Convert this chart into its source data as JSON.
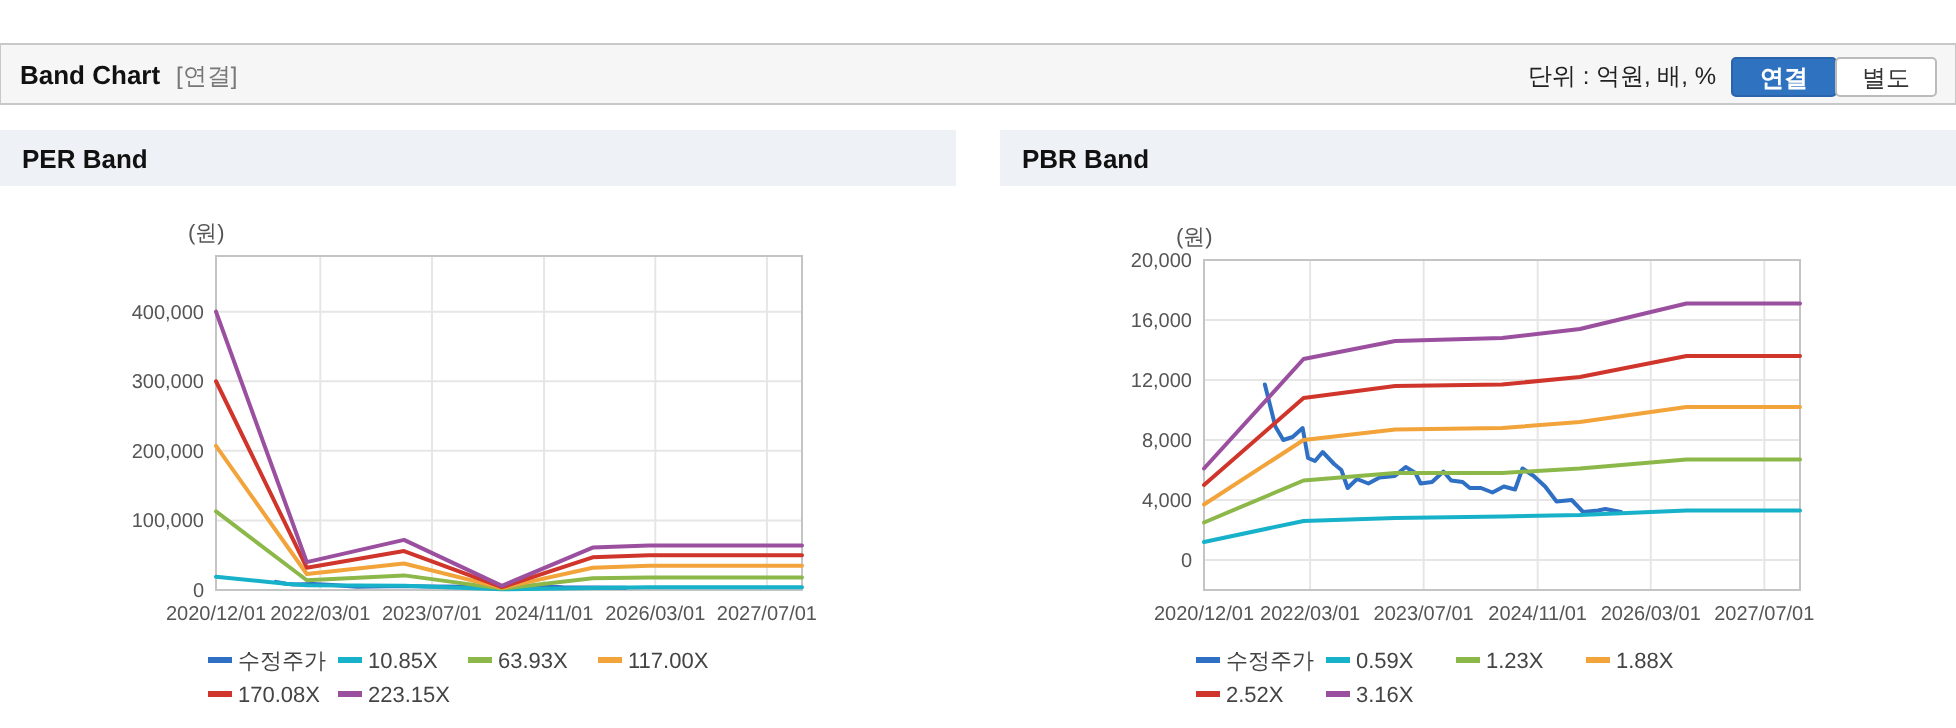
{
  "chart_data": [
    {
      "type": "other",
      "title": "Band Chart",
      "subtitle": "[연결]",
      "annotations": [
        "단위 : 억원, 배, %",
        "연결",
        "별도"
      ]
    },
    {
      "type": "line",
      "title": "PER Band",
      "ylabel": "(원)",
      "legend": "bottom",
      "grid": true,
      "marker": "none",
      "line_style": "solid",
      "xlim": [
        "2020-12-01",
        "2027-12-01"
      ],
      "ylim": [
        0,
        480000
      ],
      "xticks": [
        {
          "value": "2020-12-01",
          "label": "2020/12/01"
        },
        {
          "value": "2022-03-01",
          "label": "2022/03/01"
        },
        {
          "value": "2023-07-01",
          "label": "2023/07/01"
        },
        {
          "value": "2024-11-01",
          "label": "2024/11/01"
        },
        {
          "value": "2026-03-01",
          "label": "2026/03/01"
        },
        {
          "value": "2027-07-01",
          "label": "2027/07/01"
        }
      ],
      "yticks": [
        {
          "value": 0,
          "label": "0"
        },
        {
          "value": 100000,
          "label": "100,000"
        },
        {
          "value": 200000,
          "label": "200,000"
        },
        {
          "value": 300000,
          "label": "300,000"
        },
        {
          "value": 400000,
          "label": "400,000"
        }
      ],
      "series": [
        {
          "name": "수정주가",
          "color": "#2f6fc4",
          "x": [
            "2021-08-19",
            "2021-10-03",
            "2021-11-06",
            "2022-01-28",
            "2022-04-24",
            "2022-08-09",
            "2023-02-27",
            "2023-06-18",
            "2024-01-15",
            "2024-08-28",
            "2025-01-21",
            "2025-10-24"
          ],
          "values": [
            11700,
            8900,
            8000,
            8800,
            7200,
            4800,
            5600,
            5100,
            4800,
            6100,
            3900,
            3200
          ]
        },
        {
          "name": "10.85X",
          "color": "#17b1c9",
          "x": [
            "2020-12-01",
            "2021-10-01",
            "2022-01-01",
            "2023-03-01",
            "2024-05-01",
            "2025-06-01",
            "2026-02-01",
            "2027-12-01"
          ],
          "values": [
            19000,
            9000,
            7000,
            6000,
            1000,
            3000,
            4000,
            4000
          ]
        },
        {
          "name": "63.93X",
          "color": "#8cb84a",
          "x": [
            "2020-12-01",
            "2022-01-01",
            "2023-03-01",
            "2024-05-01",
            "2025-06-01",
            "2026-02-01",
            "2027-12-01"
          ],
          "values": [
            113000,
            14000,
            21000,
            2000,
            17000,
            18000,
            18000
          ]
        },
        {
          "name": "117.00X",
          "color": "#f2a33a",
          "x": [
            "2020-12-01",
            "2022-01-01",
            "2023-03-01",
            "2024-05-01",
            "2025-06-01",
            "2026-02-01",
            "2027-12-01"
          ],
          "values": [
            207000,
            23000,
            38000,
            3000,
            32000,
            35000,
            35000
          ]
        },
        {
          "name": "170.08X",
          "color": "#d0352b",
          "x": [
            "2020-12-01",
            "2022-01-01",
            "2023-03-01",
            "2024-05-01",
            "2025-06-01",
            "2026-02-01",
            "2027-12-01"
          ],
          "values": [
            300000,
            32000,
            56000,
            4000,
            47000,
            50000,
            50000
          ]
        },
        {
          "name": "223.15X",
          "color": "#9b4f9f",
          "x": [
            "2020-12-01",
            "2022-01-01",
            "2023-03-01",
            "2024-05-01",
            "2025-06-01",
            "2026-02-01",
            "2027-12-01"
          ],
          "values": [
            400000,
            40000,
            72000,
            6000,
            61000,
            64000,
            64000
          ]
        }
      ]
    },
    {
      "type": "line",
      "title": "PBR Band",
      "ylabel": "(원)",
      "legend": "bottom",
      "grid": true,
      "marker": "none",
      "line_style": "solid",
      "xlim": [
        "2020-12-01",
        "2027-12-01"
      ],
      "ylim": [
        -2000,
        20000
      ],
      "xticks": [
        {
          "value": "2020-12-01",
          "label": "2020/12/01"
        },
        {
          "value": "2022-03-01",
          "label": "2022/03/01"
        },
        {
          "value": "2023-07-01",
          "label": "2023/07/01"
        },
        {
          "value": "2024-11-01",
          "label": "2024/11/01"
        },
        {
          "value": "2026-03-01",
          "label": "2026/03/01"
        },
        {
          "value": "2027-07-01",
          "label": "2027/07/01"
        }
      ],
      "yticks": [
        {
          "value": 0,
          "label": "0"
        },
        {
          "value": 4000,
          "label": "4,000"
        },
        {
          "value": 8000,
          "label": "8,000"
        },
        {
          "value": 12000,
          "label": "12,000"
        },
        {
          "value": 16000,
          "label": "16,000"
        },
        {
          "value": 20000,
          "label": "20,000"
        }
      ],
      "series": [
        {
          "name": "수정주가",
          "color": "#2f6fc4",
          "x": [
            "2021-08-19",
            "2021-10-03",
            "2021-11-06",
            "2021-12-16",
            "2022-01-28",
            "2022-02-20",
            "2022-03-22",
            "2022-04-24",
            "2022-06-12",
            "2022-07-13",
            "2022-08-09",
            "2022-09-18",
            "2022-11-06",
            "2022-12-24",
            "2023-02-27",
            "2023-04-15",
            "2023-05-27",
            "2023-06-18",
            "2023-08-06",
            "2023-09-24",
            "2023-10-27",
            "2023-12-15",
            "2024-01-15",
            "2024-03-03",
            "2024-04-21",
            "2024-06-09",
            "2024-07-27",
            "2024-08-28",
            "2024-10-15",
            "2024-12-03",
            "2025-01-21",
            "2025-03-27",
            "2025-05-15",
            "2025-07-18",
            "2025-08-18",
            "2025-10-24"
          ],
          "values": [
            11700,
            8900,
            8000,
            8200,
            8800,
            6800,
            6600,
            7200,
            6400,
            6000,
            4800,
            5400,
            5100,
            5500,
            5600,
            6200,
            5800,
            5100,
            5200,
            5900,
            5300,
            5200,
            4800,
            4800,
            4500,
            4900,
            4700,
            6100,
            5600,
            4900,
            3900,
            4000,
            3200,
            3300,
            3400,
            3200
          ]
        },
        {
          "name": "0.59X",
          "color": "#17b1c9",
          "x": [
            "2020-12-01",
            "2022-02-01",
            "2023-03-01",
            "2024-06-01",
            "2025-05-01",
            "2026-08-01",
            "2027-12-01"
          ],
          "values": [
            1200,
            2600,
            2800,
            2900,
            3000,
            3300,
            3300
          ]
        },
        {
          "name": "1.23X",
          "color": "#8cb84a",
          "x": [
            "2020-12-01",
            "2022-02-01",
            "2023-03-01",
            "2024-06-01",
            "2025-05-01",
            "2026-08-01",
            "2027-12-01"
          ],
          "values": [
            2500,
            5300,
            5800,
            5800,
            6100,
            6700,
            6700
          ]
        },
        {
          "name": "1.88X",
          "color": "#f2a33a",
          "x": [
            "2020-12-01",
            "2022-02-01",
            "2023-03-01",
            "2024-06-01",
            "2025-05-01",
            "2026-08-01",
            "2027-12-01"
          ],
          "values": [
            3700,
            8000,
            8700,
            8800,
            9200,
            10200,
            10200
          ]
        },
        {
          "name": "2.52X",
          "color": "#d0352b",
          "x": [
            "2020-12-01",
            "2022-02-01",
            "2023-03-01",
            "2024-06-01",
            "2025-05-01",
            "2026-08-01",
            "2027-12-01"
          ],
          "values": [
            5000,
            10800,
            11600,
            11700,
            12200,
            13600,
            13600
          ]
        },
        {
          "name": "3.16X",
          "color": "#9b4f9f",
          "x": [
            "2020-12-01",
            "2022-02-01",
            "2023-03-01",
            "2024-06-01",
            "2025-05-01",
            "2026-08-01",
            "2027-12-01"
          ],
          "values": [
            6100,
            13400,
            14600,
            14800,
            15400,
            17100,
            17100
          ]
        }
      ]
    }
  ]
}
